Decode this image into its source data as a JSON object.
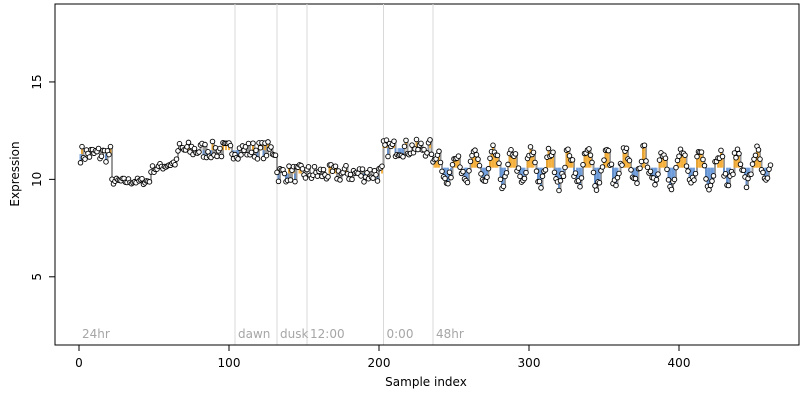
{
  "chart_data": {
    "type": "scatter",
    "title": "",
    "xlabel": "Sample index",
    "ylabel": "Expression",
    "xlim": [
      -16,
      480
    ],
    "ylim": [
      1.5,
      19
    ],
    "x_ticks": [
      0,
      100,
      200,
      300,
      400
    ],
    "y_ticks": [
      5,
      10,
      15
    ],
    "grid": false,
    "event_markers": [
      {
        "label": "24hr",
        "x": 0
      },
      {
        "label": "dawn",
        "x": 104
      },
      {
        "label": "dusk",
        "x": 132
      },
      {
        "label": "12:00",
        "x": 152
      },
      {
        "label": "0:00",
        "x": 203
      },
      {
        "label": "48hr",
        "x": 236
      }
    ],
    "marker_lines": [
      104,
      132,
      152,
      203,
      236
    ],
    "colors": {
      "point_fill": "#ffffff",
      "point_edge": "#000000",
      "step_line": "#999999",
      "highlight_orange": "#f5a623",
      "highlight_blue": "#5b8fd6",
      "marker_line": "#d9d9d9",
      "marker_label": "#a6a6a6"
    },
    "segments": [
      {
        "x_start": 1,
        "x_end": 22,
        "y_level": 11.3,
        "pattern": "noisy"
      },
      {
        "x_start": 22,
        "x_end": 48,
        "y_level": 9.9,
        "pattern": "flat"
      },
      {
        "x_start": 48,
        "x_end": 66,
        "y_level": 10.7,
        "pattern": "rising"
      },
      {
        "x_start": 66,
        "x_end": 132,
        "y_level": 11.5,
        "pattern": "noisy"
      },
      {
        "x_start": 132,
        "x_end": 203,
        "y_level": 10.3,
        "pattern": "noisy"
      },
      {
        "x_start": 203,
        "x_end": 236,
        "y_level": 11.6,
        "pattern": "noisy"
      },
      {
        "x_start": 236,
        "x_end": 462,
        "y_level": 10.6,
        "pattern": "oscillating"
      }
    ]
  }
}
